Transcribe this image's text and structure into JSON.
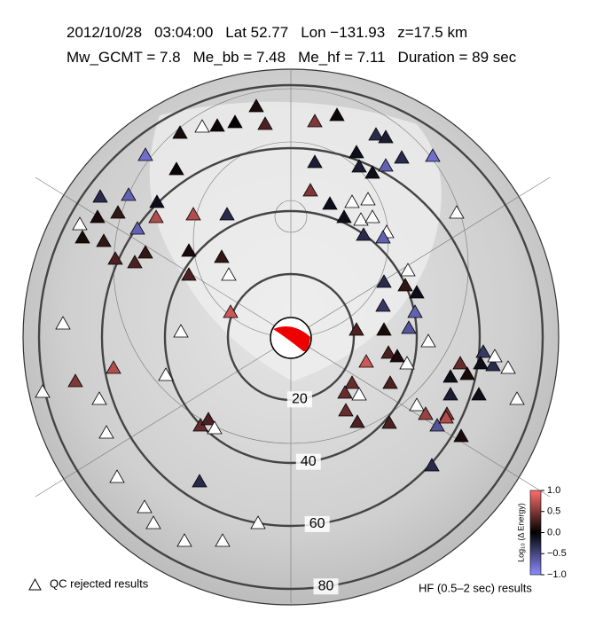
{
  "header": {
    "line1": [
      "2012/10/28",
      "03:04:00",
      "Lat 52.77",
      "Lon −131.93",
      "z=17.5 km"
    ],
    "line2": [
      "Mw_GCMT = 7.8",
      "Me_bb = 7.48",
      "Me_hf = 7.11",
      "Duration = 89 sec"
    ]
  },
  "map": {
    "distance_rings": [
      20,
      40,
      60,
      80
    ],
    "station_energy": [
      0.1,
      null,
      0.1,
      0.05,
      0.02,
      0.3,
      0.5,
      0.05,
      -0.3,
      -0.2,
      -0.8,
      0.05,
      -0.2,
      -0.1,
      -0.7,
      -0.3,
      -0.8,
      -0.2,
      -0.1,
      0.5,
      -0.1,
      null,
      null,
      -0.1,
      null,
      null,
      null,
      null,
      -0.3,
      -0.7,
      -0.1,
      0.1,
      0.2,
      0.7,
      0.7,
      -0.3,
      null,
      -0.7,
      0.1,
      0.2,
      0.2,
      0.3,
      0.3,
      0.1,
      0.2,
      null,
      0.3,
      -0.3,
      -0.7,
      null,
      -0.3,
      0.2,
      -0.1,
      -0.4,
      -0.7,
      -0.6,
      null,
      0.8,
      0.8,
      0.3,
      0.1,
      0.3,
      0.1,
      null,
      0.3,
      0.4,
      0.4,
      null,
      0.4,
      0.3,
      0.3,
      null,
      0.6,
      -0.6,
      0.5,
      0.4,
      0.1,
      -0.1,
      -0.4,
      -0.1,
      -0.3,
      null,
      null,
      null,
      -0.2,
      -0.1,
      0.7,
      0.1,
      -0.3,
      0.7,
      0.5,
      null,
      null,
      null,
      null,
      null,
      null,
      0.4,
      0.3,
      null,
      null,
      -0.3,
      null,
      null,
      null,
      null,
      null
    ]
  },
  "colorbar": {
    "label": "Log₁₀ (Δ Energy)",
    "lim": [
      -1.0,
      1.0
    ],
    "colors": [
      "#8c8cff",
      "#000000",
      "#ff6e6e"
    ],
    "ticks": [
      {
        "value": 1.0,
        "label": "1.0"
      },
      {
        "value": 0.5,
        "label": "0.5"
      },
      {
        "value": 0.0,
        "label": "0.0"
      },
      {
        "value": -0.5,
        "label": "−0.5"
      },
      {
        "value": -1.0,
        "label": "−1.0"
      }
    ]
  },
  "legend": {
    "rejected": "QC rejected results",
    "band": "HF (0.5–2 sec) results"
  }
}
